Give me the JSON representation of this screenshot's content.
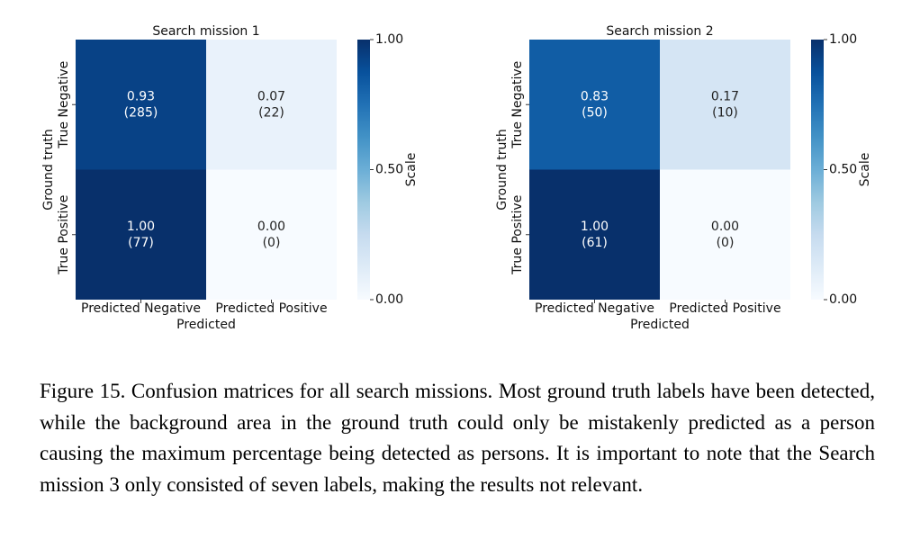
{
  "chart_data": [
    {
      "type": "heatmap",
      "title": "Search mission 1",
      "xlabel": "Predicted",
      "ylabel": "Ground truth",
      "x_categories": [
        "Predicted Negative",
        "Predicted Positive"
      ],
      "y_categories": [
        "True Negative",
        "True Positive"
      ],
      "values": [
        [
          0.93,
          0.07
        ],
        [
          1.0,
          0.0
        ]
      ],
      "value_labels": [
        [
          "0.93",
          "0.07"
        ],
        [
          "1.00",
          "0.00"
        ]
      ],
      "count_labels": [
        [
          "(285)",
          "(22)"
        ],
        [
          "(77)",
          "(0)"
        ]
      ],
      "colorbar_label": "Scale",
      "zlim": [
        0,
        1
      ],
      "zticks": [
        {
          "value": 0,
          "label": "0.00"
        },
        {
          "value": 0.5,
          "label": "0.50"
        },
        {
          "value": 1,
          "label": "1.00"
        }
      ],
      "colormap": [
        "#f7fbff",
        "#deebf7",
        "#c6dbef",
        "#9ecae1",
        "#6baed6",
        "#4292c6",
        "#2171b5",
        "#08519c",
        "#08306b"
      ]
    },
    {
      "type": "heatmap",
      "title": "Search mission 2",
      "xlabel": "Predicted",
      "ylabel": "Ground truth",
      "x_categories": [
        "Predicted Negative",
        "Predicted Positive"
      ],
      "y_categories": [
        "True Negative",
        "True Positive"
      ],
      "values": [
        [
          0.83,
          0.17
        ],
        [
          1.0,
          0.0
        ]
      ],
      "value_labels": [
        [
          "0.83",
          "0.17"
        ],
        [
          "1.00",
          "0.00"
        ]
      ],
      "count_labels": [
        [
          "(50)",
          "(10)"
        ],
        [
          "(61)",
          "(0)"
        ]
      ],
      "colorbar_label": "Scale",
      "zlim": [
        0,
        1
      ],
      "zticks": [
        {
          "value": 0,
          "label": "0.00"
        },
        {
          "value": 0.5,
          "label": "0.50"
        },
        {
          "value": 1,
          "label": "1.00"
        }
      ],
      "colormap": [
        "#f7fbff",
        "#deebf7",
        "#c6dbef",
        "#9ecae1",
        "#6baed6",
        "#4292c6",
        "#2171b5",
        "#08519c",
        "#08306b"
      ]
    }
  ],
  "caption": "Figure 15. Confusion matrices for all search missions. Most ground truth labels have been detected, while the background area in the ground truth could only be mistakenly predicted as a person causing the maximum percentage being detected as persons. It is important to note that the Search mission 3 only consisted of seven labels, making the results not relevant."
}
